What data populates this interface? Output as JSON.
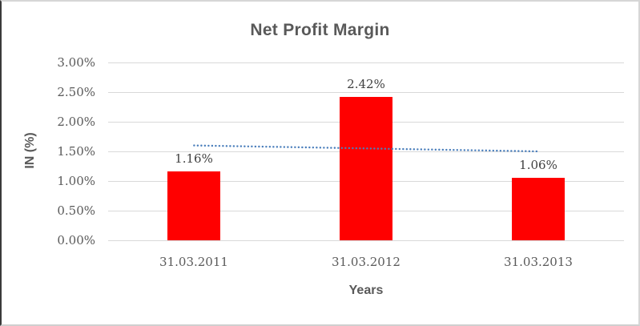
{
  "chart_data": {
    "type": "bar",
    "title": "Net Profit Margin",
    "categories": [
      "31.03.2011",
      "31.03.2012",
      "31.03.2013"
    ],
    "values": [
      1.16,
      2.42,
      1.06
    ],
    "value_labels": [
      "1.16%",
      "2.42%",
      "1.06%"
    ],
    "xlabel": "Years",
    "ylabel": "IN (%)",
    "ylim": [
      0,
      3
    ],
    "ytick_values": [
      0,
      0.5,
      1,
      1.5,
      2,
      2.5,
      3
    ],
    "ytick_labels": [
      "0.00%",
      "0.50%",
      "1.00%",
      "1.50%",
      "2.00%",
      "2.50%",
      "3.00%"
    ],
    "grid": true,
    "legend": "none",
    "bar_color": "#ff0000",
    "trendline": {
      "type": "linear",
      "style": "dotted",
      "color": "#4a7ebb",
      "start_value": 1.6,
      "end_value": 1.5
    },
    "colors": {
      "title_text": "#595959",
      "axis_text": "#595959",
      "data_label_text": "#404040",
      "gridline": "#d9d9d9"
    }
  }
}
